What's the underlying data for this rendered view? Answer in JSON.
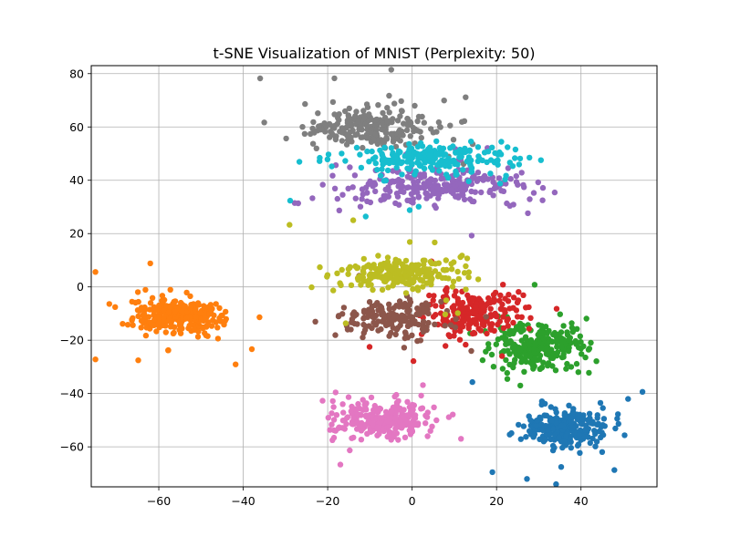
{
  "chart_data": {
    "type": "scatter",
    "title": "t-SNE Visualization of MNIST (Perplexity: 50)",
    "xlabel": "",
    "ylabel": "",
    "xlim": [
      -76,
      58
    ],
    "ylim": [
      -75,
      83
    ],
    "x_ticks": [
      -60,
      -40,
      -20,
      0,
      20,
      40
    ],
    "y_ticks": [
      -60,
      -40,
      -20,
      0,
      20,
      40,
      60,
      80
    ],
    "x_tick_labels": [
      "−60",
      "−40",
      "−20",
      "0",
      "20",
      "40"
    ],
    "y_tick_labels": [
      "−60",
      "−40",
      "−20",
      "0",
      "20",
      "40",
      "60",
      "80"
    ],
    "grid": true,
    "legend": "none",
    "marker": "circle",
    "series": [
      {
        "color": "#1f77b4",
        "center": [
          37,
          -53
        ],
        "spread": [
          8,
          6
        ],
        "count": 260
      },
      {
        "color": "#ff7f0e",
        "center": [
          -55,
          -11
        ],
        "spread": [
          9,
          5.5
        ],
        "count": 280
      },
      {
        "color": "#2ca02c",
        "center": [
          30,
          -22
        ],
        "spread": [
          9,
          8
        ],
        "count": 250
      },
      {
        "color": "#d62728",
        "center": [
          15,
          -10
        ],
        "spread": [
          10,
          7
        ],
        "count": 230
      },
      {
        "color": "#9467bd",
        "center": [
          5,
          38
        ],
        "spread": [
          18,
          6
        ],
        "count": 260
      },
      {
        "color": "#8c564b",
        "center": [
          -5,
          -12
        ],
        "spread": [
          10,
          6
        ],
        "count": 170
      },
      {
        "color": "#e377c2",
        "center": [
          -7,
          -50
        ],
        "spread": [
          10,
          6
        ],
        "count": 250
      },
      {
        "color": "#7f7f7f",
        "center": [
          -10,
          60
        ],
        "spread": [
          13,
          6
        ],
        "count": 240
      },
      {
        "color": "#bcbd22",
        "center": [
          -2,
          5
        ],
        "spread": [
          12,
          5
        ],
        "count": 230
      },
      {
        "color": "#17becf",
        "center": [
          5,
          48
        ],
        "spread": [
          16,
          4.5
        ],
        "count": 230
      }
    ]
  }
}
